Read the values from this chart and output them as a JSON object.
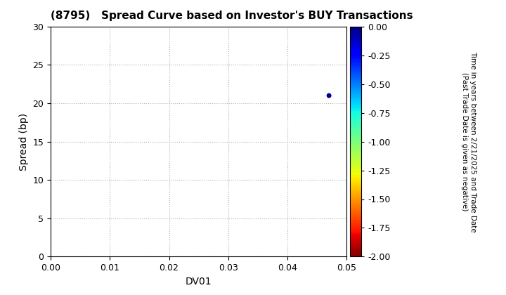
{
  "title": "(8795)   Spread Curve based on Investor's BUY Transactions",
  "xlabel": "DV01",
  "ylabel": "Spread (bp)",
  "xlim": [
    0.0,
    0.05
  ],
  "ylim": [
    0,
    30
  ],
  "xticks": [
    0.0,
    0.01,
    0.02,
    0.03,
    0.04,
    0.05
  ],
  "yticks": [
    0,
    5,
    10,
    15,
    20,
    25,
    30
  ],
  "scatter_x": [
    0.047
  ],
  "scatter_y": [
    21
  ],
  "scatter_color_value": [
    -0.03
  ],
  "colorbar_min": -2.0,
  "colorbar_max": 0.0,
  "colorbar_ticks": [
    0.0,
    -0.25,
    -0.5,
    -0.75,
    -1.0,
    -1.25,
    -1.5,
    -1.75,
    -2.0
  ],
  "colorbar_label_line1": "Time in years between 2/21/2025 and Trade Date",
  "colorbar_label_line2": "(Past Trade Date is given as negative)",
  "background_color": "#ffffff",
  "grid_color": "#b0b0b0",
  "title_fontsize": 11,
  "axis_label_fontsize": 10,
  "tick_fontsize": 9,
  "colorbar_tick_fontsize": 9,
  "colorbar_label_fontsize": 7.5
}
